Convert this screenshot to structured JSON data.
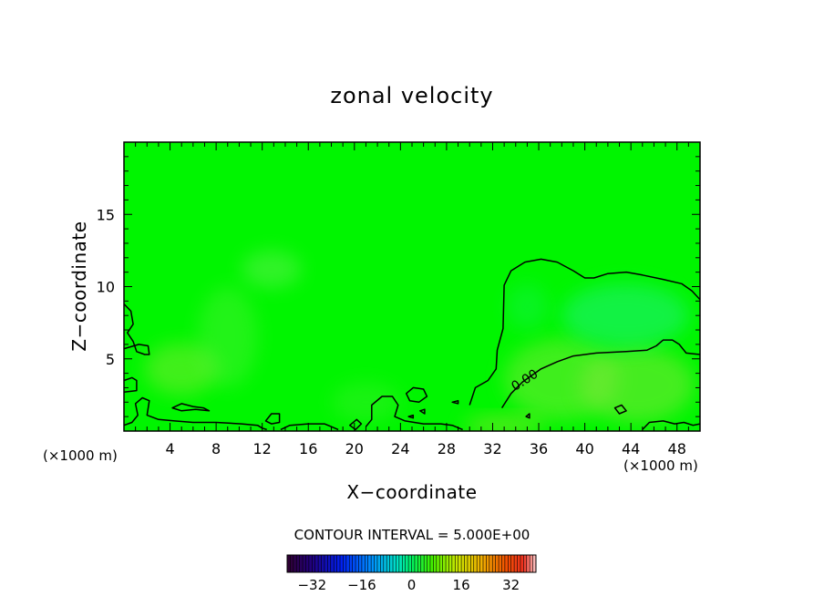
{
  "chart_data": {
    "type": "heatmap",
    "title": "zonal velocity",
    "xlabel": "X−coordinate",
    "ylabel": "Z−coordinate",
    "x_unit_left": "(×1000 m)",
    "x_unit_right": "(×1000 m)",
    "xlim": [
      0,
      50
    ],
    "ylim": [
      0,
      20
    ],
    "x_ticks": [
      4,
      8,
      12,
      16,
      20,
      24,
      28,
      32,
      36,
      40,
      44,
      48
    ],
    "y_ticks": [
      5,
      10,
      15
    ],
    "contour_interval_label": "CONTOUR INTERVAL = 5.000E+00",
    "contour_label": "0.00",
    "colorbar": {
      "range": [
        -40,
        40
      ],
      "ticks": [
        -32,
        -16,
        0,
        16,
        32
      ],
      "tick_labels": [
        "−32",
        "−16",
        "0",
        "16",
        "32"
      ]
    },
    "background_color": "#00f500",
    "contour_color": "#000000",
    "zero_contours": [
      {
        "closed": false,
        "points": [
          [
            30.0,
            1.8
          ],
          [
            30.5,
            3.0
          ],
          [
            31.6,
            3.5
          ],
          [
            32.3,
            4.3
          ],
          [
            32.4,
            5.6
          ],
          [
            32.9,
            7.1
          ],
          [
            33.0,
            10.1
          ],
          [
            33.6,
            11.1
          ],
          [
            34.8,
            11.7
          ],
          [
            36.2,
            11.9
          ],
          [
            37.6,
            11.7
          ],
          [
            39.0,
            11.1
          ],
          [
            40.0,
            10.6
          ],
          [
            40.8,
            10.6
          ],
          [
            42.0,
            10.9
          ],
          [
            43.6,
            11.0
          ],
          [
            45.0,
            10.8
          ],
          [
            46.8,
            10.5
          ],
          [
            48.4,
            10.2
          ],
          [
            49.3,
            9.7
          ],
          [
            50.0,
            9.1
          ]
        ]
      },
      {
        "closed": false,
        "points": [
          [
            32.8,
            1.6
          ],
          [
            33.6,
            2.6
          ],
          [
            34.6,
            3.4
          ],
          [
            36.2,
            4.3
          ],
          [
            37.6,
            4.8
          ],
          [
            39.0,
            5.2
          ],
          [
            41.0,
            5.4
          ],
          [
            43.6,
            5.5
          ],
          [
            45.4,
            5.6
          ],
          [
            46.2,
            5.9
          ],
          [
            46.8,
            6.3
          ],
          [
            47.6,
            6.3
          ],
          [
            48.2,
            6.0
          ],
          [
            48.8,
            5.4
          ],
          [
            50.0,
            5.3
          ]
        ]
      },
      {
        "closed": false,
        "points": [
          [
            0.0,
            8.8
          ],
          [
            0.6,
            8.3
          ],
          [
            0.8,
            7.4
          ],
          [
            0.3,
            6.8
          ],
          [
            0.8,
            6.2
          ],
          [
            1.1,
            5.5
          ],
          [
            1.8,
            5.3
          ],
          [
            2.2,
            5.3
          ],
          [
            2.1,
            5.9
          ],
          [
            1.3,
            6.0
          ],
          [
            0.0,
            5.7
          ]
        ]
      },
      {
        "closed": false,
        "points": [
          [
            0.0,
            3.5
          ],
          [
            0.7,
            3.7
          ],
          [
            1.1,
            3.5
          ],
          [
            1.1,
            2.8
          ],
          [
            0.0,
            2.7
          ]
        ]
      },
      {
        "closed": false,
        "points": [
          [
            0.0,
            0.4
          ],
          [
            0.7,
            0.6
          ],
          [
            1.2,
            1.1
          ],
          [
            1.0,
            1.9
          ],
          [
            1.6,
            2.3
          ],
          [
            2.2,
            2.1
          ],
          [
            2.0,
            1.1
          ],
          [
            3.0,
            0.8
          ],
          [
            4.4,
            0.7
          ],
          [
            6.0,
            0.6
          ],
          [
            8.0,
            0.6
          ],
          [
            10.2,
            0.5
          ],
          [
            11.6,
            0.4
          ],
          [
            12.0,
            0.2
          ],
          [
            12.4,
            0.1
          ]
        ]
      },
      {
        "closed": true,
        "points": [
          [
            4.2,
            1.6
          ],
          [
            5.0,
            1.9
          ],
          [
            6.0,
            1.7
          ],
          [
            6.9,
            1.6
          ],
          [
            7.4,
            1.4
          ],
          [
            6.2,
            1.5
          ],
          [
            5.0,
            1.4
          ]
        ]
      },
      {
        "closed": true,
        "points": [
          [
            12.3,
            0.7
          ],
          [
            12.8,
            1.2
          ],
          [
            13.5,
            1.2
          ],
          [
            13.5,
            0.6
          ],
          [
            12.8,
            0.5
          ]
        ]
      },
      {
        "closed": false,
        "points": [
          [
            13.6,
            0.1
          ],
          [
            14.4,
            0.4
          ],
          [
            16.0,
            0.5
          ],
          [
            17.4,
            0.5
          ],
          [
            18.0,
            0.3
          ],
          [
            18.6,
            0.1
          ]
        ]
      },
      {
        "closed": true,
        "points": [
          [
            19.6,
            0.4
          ],
          [
            20.2,
            0.8
          ],
          [
            20.6,
            0.5
          ],
          [
            20.1,
            0.1
          ]
        ]
      },
      {
        "closed": false,
        "points": [
          [
            21.0,
            0.3
          ],
          [
            21.5,
            0.8
          ],
          [
            21.5,
            1.8
          ],
          [
            22.4,
            2.4
          ],
          [
            23.3,
            2.4
          ],
          [
            23.8,
            1.8
          ],
          [
            23.5,
            1.0
          ],
          [
            24.4,
            0.7
          ],
          [
            26.0,
            0.5
          ],
          [
            27.5,
            0.5
          ],
          [
            28.5,
            0.4
          ],
          [
            29.4,
            0.1
          ]
        ]
      },
      {
        "closed": true,
        "points": [
          [
            24.5,
            2.6
          ],
          [
            25.1,
            3.0
          ],
          [
            26.0,
            2.9
          ],
          [
            26.3,
            2.4
          ],
          [
            25.6,
            2.0
          ],
          [
            24.8,
            2.1
          ]
        ]
      },
      {
        "closed": true,
        "points": [
          [
            25.7,
            1.4
          ],
          [
            26.1,
            1.5
          ],
          [
            26.1,
            1.2
          ]
        ]
      },
      {
        "closed": true,
        "points": [
          [
            24.7,
            1.0
          ],
          [
            25.1,
            1.1
          ],
          [
            25.1,
            0.9
          ]
        ]
      },
      {
        "closed": true,
        "points": [
          [
            28.5,
            2.0
          ],
          [
            29.0,
            2.1
          ],
          [
            29.0,
            1.9
          ]
        ]
      },
      {
        "closed": true,
        "points": [
          [
            34.9,
            1.0
          ],
          [
            35.2,
            1.2
          ],
          [
            35.2,
            0.9
          ]
        ]
      },
      {
        "closed": true,
        "points": [
          [
            42.6,
            1.6
          ],
          [
            43.2,
            1.8
          ],
          [
            43.6,
            1.4
          ],
          [
            43.0,
            1.2
          ]
        ]
      },
      {
        "closed": false,
        "points": [
          [
            45.0,
            0.1
          ],
          [
            45.6,
            0.6
          ],
          [
            46.8,
            0.7
          ],
          [
            47.8,
            0.5
          ],
          [
            48.6,
            0.6
          ],
          [
            49.4,
            0.4
          ],
          [
            50.0,
            0.5
          ]
        ]
      }
    ],
    "shading_patches": [
      {
        "cx": 12.8,
        "cy": 11.2,
        "rx": 2.6,
        "ry": 1.3,
        "color": "#6df05a",
        "opacity": 0.45
      },
      {
        "cx": 5.0,
        "cy": 4.3,
        "rx": 3.2,
        "ry": 1.8,
        "color": "#8fe83a",
        "opacity": 0.45
      },
      {
        "cx": 9.0,
        "cy": 6.5,
        "rx": 2.6,
        "ry": 3.5,
        "color": "#6fef4f",
        "opacity": 0.3
      },
      {
        "cx": 38.0,
        "cy": 3.6,
        "rx": 5.0,
        "ry": 2.8,
        "color": "#73ea36",
        "opacity": 0.55
      },
      {
        "cx": 44.5,
        "cy": 3.2,
        "rx": 5.0,
        "ry": 2.6,
        "color": "#7fe63a",
        "opacity": 0.55
      },
      {
        "cx": 43.5,
        "cy": 8.0,
        "rx": 5.5,
        "ry": 2.2,
        "color": "#24f07c",
        "opacity": 0.55
      },
      {
        "cx": 35.0,
        "cy": 8.6,
        "rx": 1.8,
        "ry": 1.6,
        "color": "#1cf070",
        "opacity": 0.3
      },
      {
        "cx": 21.0,
        "cy": 2.0,
        "rx": 3.0,
        "ry": 1.4,
        "color": "#55ee3e",
        "opacity": 0.3
      },
      {
        "cx": 33.0,
        "cy": 0.4,
        "rx": 3.5,
        "ry": 0.6,
        "color": "#b0e03a",
        "opacity": 0.5
      }
    ]
  }
}
